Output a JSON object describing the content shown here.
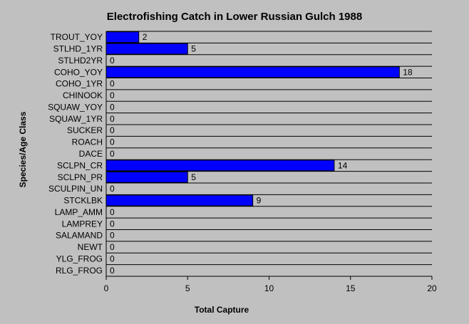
{
  "chart_data": {
    "type": "bar",
    "orientation": "horizontal",
    "title": "Electrofishing Catch in Lower Russian Gulch 1988",
    "xlabel": "Total Capture",
    "ylabel": "Species/Age Class",
    "xlim": [
      0,
      20
    ],
    "xticks": [
      0,
      5,
      10,
      15,
      20
    ],
    "categories": [
      "TROUT_YOY",
      "STLHD_1YR",
      "STLHD2YR",
      "COHO_YOY",
      "COHO_1YR",
      "CHINOOK",
      "SQUAW_YOY",
      "SQUAW_1YR",
      "SUCKER",
      "ROACH",
      "DACE",
      "SCLPN_CR",
      "SCLPN_PR",
      "SCULPIN_UN",
      "STCKLBK",
      "LAMP_AMM",
      "LAMPREY",
      "SALAMAND",
      "NEWT",
      "YLG_FROG",
      "RLG_FROG"
    ],
    "values": [
      2,
      5,
      0,
      18,
      0,
      0,
      0,
      0,
      0,
      0,
      0,
      14,
      5,
      0,
      9,
      0,
      0,
      0,
      0,
      0,
      0
    ],
    "bar_color": "#0000ff",
    "background_color": "#c0c0c0",
    "grid": false,
    "legend": "none"
  }
}
